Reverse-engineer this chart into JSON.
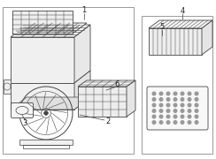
{
  "bg_color": "#ffffff",
  "border_color": "#999999",
  "line_color": "#444444",
  "label_color": "#222222",
  "figsize": [
    2.44,
    1.8
  ],
  "dpi": 100
}
